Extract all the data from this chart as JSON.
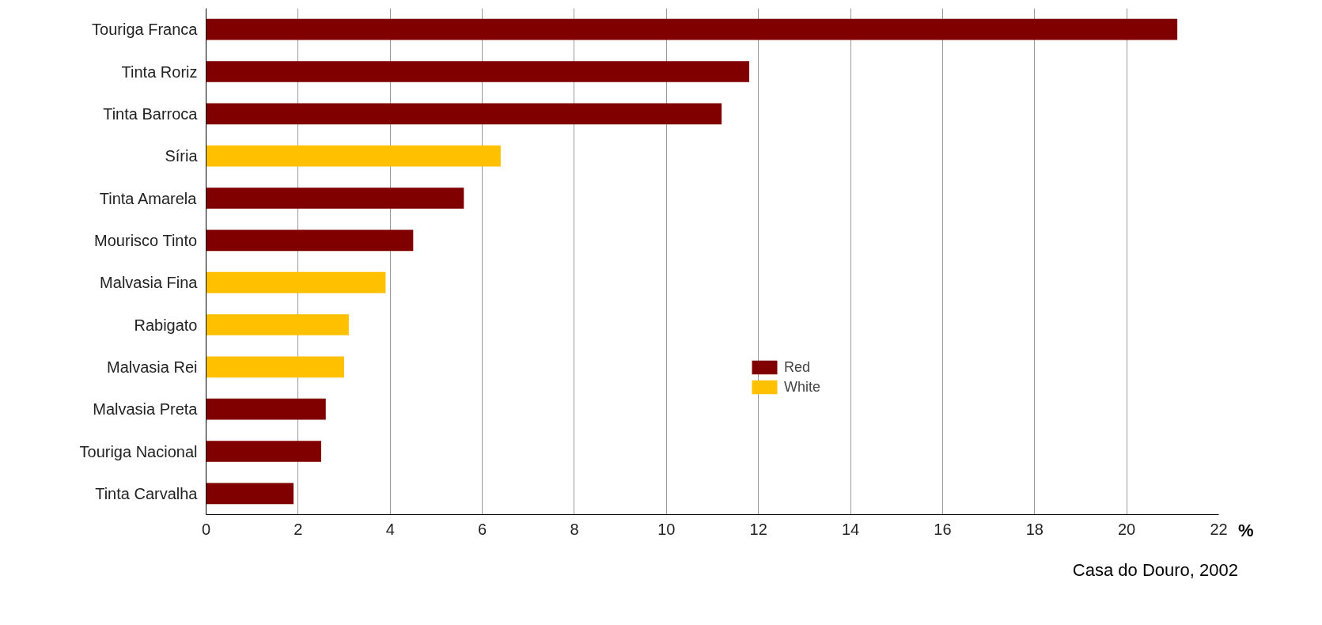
{
  "chart_data": {
    "type": "bar",
    "orientation": "horizontal",
    "categories": [
      "Touriga Franca",
      "Tinta Roriz",
      "Tinta Barroca",
      "Síria",
      "Tinta Amarela",
      "Mourisco Tinto",
      "Malvasia Fina",
      "Rabigato",
      "Malvasia Rei",
      "Malvasia Preta",
      "Touriga Nacional",
      "Tinta Carvalha"
    ],
    "series": [
      {
        "name": "Red",
        "color": "#800000",
        "values": [
          21.1,
          11.8,
          11.2,
          null,
          5.6,
          4.5,
          null,
          null,
          null,
          2.6,
          2.5,
          1.9
        ]
      },
      {
        "name": "White",
        "color": "#ffc000",
        "values": [
          null,
          null,
          null,
          6.4,
          null,
          null,
          3.9,
          3.1,
          3.0,
          null,
          null,
          null
        ]
      }
    ],
    "xlim": [
      0,
      22
    ],
    "xticks": [
      0,
      2,
      4,
      6,
      8,
      10,
      12,
      14,
      16,
      18,
      20,
      22
    ],
    "xlabel": "%",
    "grid": "x",
    "legend": "right",
    "annotations": [
      "Casa do Douro, 2002"
    ]
  }
}
